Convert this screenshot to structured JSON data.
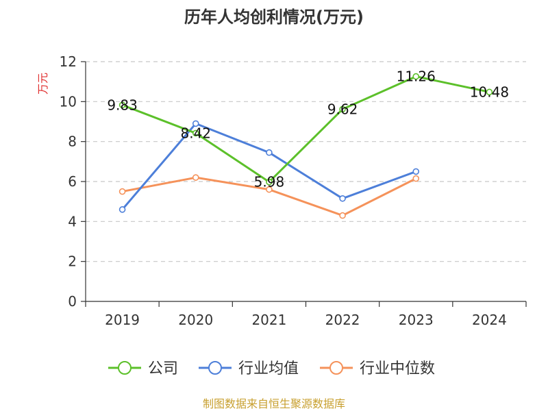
{
  "chart_data": {
    "type": "line",
    "title": "历年人均创利情况(万元)",
    "ylabel": "万元",
    "xlabel": "",
    "categories": [
      "2019",
      "2020",
      "2021",
      "2022",
      "2023",
      "2024"
    ],
    "ylim": [
      0,
      12
    ],
    "yticks": [
      0,
      2,
      4,
      6,
      8,
      10,
      12
    ],
    "grid": true,
    "legend_position": "bottom",
    "series": [
      {
        "name": "公司",
        "color": "#5cc02a",
        "values": [
          9.83,
          8.42,
          5.98,
          9.62,
          11.26,
          10.48
        ],
        "labels": [
          "9.83",
          "8.42",
          "5.98",
          "9.62",
          "11.26",
          "10.48"
        ]
      },
      {
        "name": "行业均值",
        "color": "#4d7fd9",
        "values": [
          4.6,
          8.9,
          7.45,
          5.15,
          6.5,
          null
        ]
      },
      {
        "name": "行业中位数",
        "color": "#f5925a",
        "values": [
          5.5,
          6.2,
          5.6,
          4.3,
          6.15,
          null
        ]
      }
    ],
    "source": "制图数据来自恒生聚源数据库",
    "ylabel_color": "#e03030",
    "source_color": "#c8a030"
  }
}
